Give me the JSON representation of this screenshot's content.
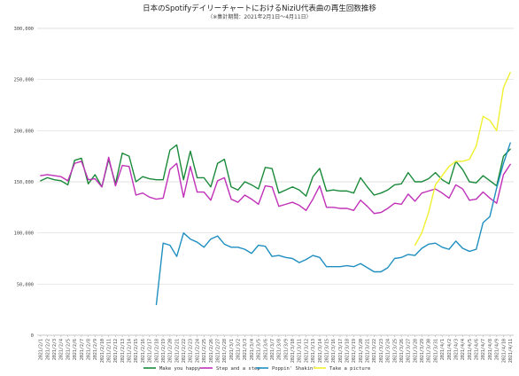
{
  "chart_data": {
    "type": "line",
    "title": "日本のSpotifyデイリーチャートにおけるNiziU代表曲の再生回数推移",
    "subtitle": "（※集計期間：2021年2月1日〜4月11日）",
    "xlabel": "",
    "ylabel": "",
    "ylim": [
      0,
      300000
    ],
    "yticks": [
      0,
      50000,
      100000,
      150000,
      200000,
      250000,
      300000
    ],
    "ytick_labels": [
      "0",
      "50,000",
      "100,000",
      "150,000",
      "200,000",
      "250,000",
      "300,000"
    ],
    "grid": true,
    "legend_position": "bottom",
    "x": [
      "2021/2/1",
      "2021/2/2",
      "2021/2/3",
      "2021/2/4",
      "2021/2/5",
      "2021/2/6",
      "2021/2/7",
      "2021/2/8",
      "2021/2/9",
      "2021/2/10",
      "2021/2/11",
      "2021/2/12",
      "2021/2/13",
      "2021/2/14",
      "2021/2/15",
      "2021/2/16",
      "2021/2/17",
      "2021/2/18",
      "2021/2/19",
      "2021/2/20",
      "2021/2/21",
      "2021/2/22",
      "2021/2/23",
      "2021/2/24",
      "2021/2/25",
      "2021/2/26",
      "2021/2/27",
      "2021/2/28",
      "2021/3/1",
      "2021/3/2",
      "2021/3/3",
      "2021/3/4",
      "2021/3/5",
      "2021/3/6",
      "2021/3/7",
      "2021/3/8",
      "2021/3/9",
      "2021/3/10",
      "2021/3/11",
      "2021/3/12",
      "2021/3/13",
      "2021/3/14",
      "2021/3/15",
      "2021/3/16",
      "2021/3/17",
      "2021/3/18",
      "2021/3/19",
      "2021/3/20",
      "2021/3/21",
      "2021/3/22",
      "2021/3/23",
      "2021/3/24",
      "2021/3/25",
      "2021/3/26",
      "2021/3/27",
      "2021/3/28",
      "2021/3/29",
      "2021/3/30",
      "2021/3/31",
      "2021/4/1",
      "2021/4/2",
      "2021/4/3",
      "2021/4/4",
      "2021/4/5",
      "2021/4/6",
      "2021/4/7",
      "2021/4/8",
      "2021/4/9",
      "2021/4/10",
      "2021/4/11"
    ],
    "series": [
      {
        "name": "Make you happy",
        "color": "#1a8a3a",
        "values": [
          151000,
          154000,
          152000,
          151000,
          147000,
          171000,
          173000,
          148000,
          157000,
          145000,
          172000,
          148000,
          178000,
          175000,
          150000,
          155000,
          153000,
          152000,
          152000,
          181000,
          186000,
          152000,
          180000,
          154000,
          154000,
          145000,
          168000,
          172000,
          145000,
          142000,
          150000,
          147000,
          143000,
          164000,
          163000,
          139000,
          142000,
          145000,
          142000,
          136000,
          155000,
          163000,
          141000,
          142000,
          141000,
          141000,
          139000,
          154000,
          145000,
          137000,
          139000,
          142000,
          147000,
          148000,
          159000,
          150000,
          150000,
          153000,
          159000,
          152000,
          148000,
          170000,
          162000,
          150000,
          149000,
          156000,
          151000,
          146000,
          175000,
          182000
        ]
      },
      {
        "name": "Step and a step",
        "color": "#c030b8",
        "values": [
          156000,
          157000,
          156000,
          155000,
          151000,
          168000,
          170000,
          152000,
          153000,
          145000,
          174000,
          146000,
          166000,
          165000,
          137000,
          139000,
          135000,
          133000,
          134000,
          162000,
          168000,
          135000,
          165000,
          140000,
          140000,
          132000,
          151000,
          154000,
          133000,
          130000,
          137000,
          133000,
          128000,
          146000,
          145000,
          126000,
          128000,
          130000,
          127000,
          122000,
          133000,
          146000,
          125000,
          125000,
          124000,
          124000,
          122000,
          132000,
          126000,
          119000,
          120000,
          124000,
          129000,
          128000,
          138000,
          131000,
          139000,
          141000,
          143000,
          139000,
          134000,
          147000,
          143000,
          132000,
          133000,
          140000,
          134000,
          129000,
          157000,
          167000
        ]
      },
      {
        "name": "Poppin' Shakin'",
        "color": "#1f8fc0",
        "values": [
          null,
          null,
          null,
          null,
          null,
          null,
          null,
          null,
          null,
          null,
          null,
          null,
          null,
          null,
          null,
          null,
          null,
          30000,
          90000,
          88000,
          77000,
          100000,
          94000,
          91000,
          86000,
          94000,
          97000,
          89000,
          86000,
          86000,
          84000,
          80000,
          88000,
          87000,
          77000,
          78000,
          76000,
          75000,
          71000,
          74000,
          78000,
          76000,
          67000,
          67000,
          67000,
          68000,
          67000,
          70000,
          66000,
          62000,
          62000,
          66000,
          75000,
          76000,
          79000,
          78000,
          85000,
          89000,
          90000,
          86000,
          84000,
          92000,
          85000,
          82000,
          84000,
          110000,
          116000,
          144000,
          168000,
          188000
        ]
      },
      {
        "name": "Take a picture",
        "color": "#f0f030",
        "values": [
          null,
          null,
          null,
          null,
          null,
          null,
          null,
          null,
          null,
          null,
          null,
          null,
          null,
          null,
          null,
          null,
          null,
          null,
          null,
          null,
          null,
          null,
          null,
          null,
          null,
          null,
          null,
          null,
          null,
          null,
          null,
          null,
          null,
          null,
          null,
          null,
          null,
          null,
          null,
          null,
          null,
          null,
          null,
          null,
          null,
          null,
          null,
          null,
          null,
          null,
          null,
          null,
          null,
          null,
          null,
          88000,
          100000,
          120000,
          147000,
          156000,
          165000,
          170000,
          170000,
          172000,
          185000,
          214000,
          210000,
          200000,
          242000,
          257000
        ]
      }
    ]
  }
}
